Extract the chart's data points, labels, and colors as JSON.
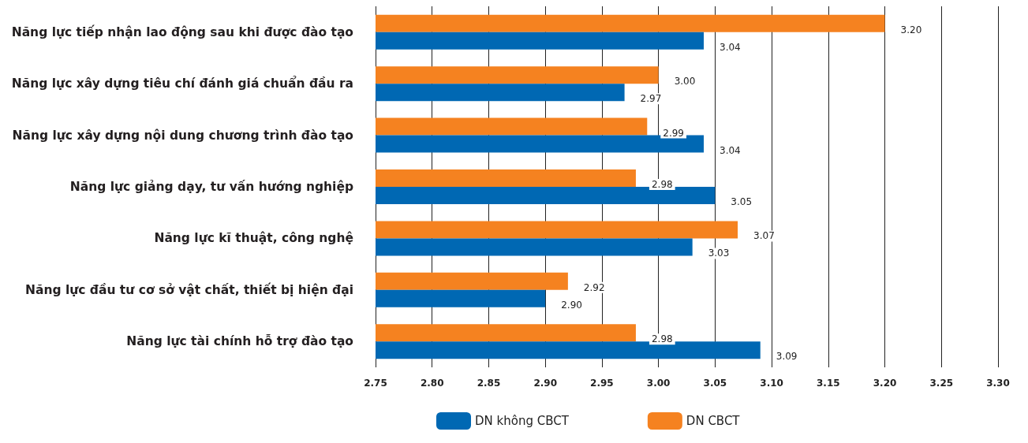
{
  "chart_data": {
    "type": "bar",
    "orientation": "horizontal",
    "categories": [
      "Năng lực tiếp nhận lao động sau khi được đào tạo",
      "Năng lực xây dựng tiêu chí đánh giá chuẩn đầu ra",
      "Năng lực xây dựng nội dung chương trình đào tạo",
      "Năng lực giảng dạy, tư vấn hướng nghiệp",
      "Năng lực kĩ thuật, công nghệ",
      "Năng lực đầu tư cơ sở vật chất, thiết bị hiện đại",
      "Năng lực tài chính hỗ trợ đào tạo"
    ],
    "series": [
      {
        "name": "DN không CBCT",
        "color": "#0068b3",
        "values": [
          3.04,
          2.97,
          3.04,
          3.05,
          3.03,
          2.9,
          3.09
        ],
        "value_labels": [
          "3.04",
          "2.97",
          "3.04",
          "3.05",
          "3.03",
          "2.90",
          "3.09"
        ]
      },
      {
        "name": "DN CBCT",
        "color": "#f58220",
        "values": [
          3.2,
          3.0,
          2.99,
          2.98,
          3.07,
          2.92,
          2.98
        ],
        "value_labels": [
          "3.20",
          "3.00",
          "2.99",
          "2.98",
          "3.07",
          "2.92",
          "2.98"
        ]
      }
    ],
    "xlim": [
      2.75,
      3.3
    ],
    "xticks": [
      {
        "value": 2.75,
        "label": "2.75"
      },
      {
        "value": 2.8,
        "label": "2.80"
      },
      {
        "value": 2.85,
        "label": "2.85"
      },
      {
        "value": 2.9,
        "label": "2.90"
      },
      {
        "value": 2.95,
        "label": "2.95"
      },
      {
        "value": 3.0,
        "label": "3.00"
      },
      {
        "value": 3.05,
        "label": "3.05"
      },
      {
        "value": 3.1,
        "label": "3.10"
      },
      {
        "value": 3.15,
        "label": "3.15"
      },
      {
        "value": 3.2,
        "label": "3.20"
      },
      {
        "value": 3.25,
        "label": "3.25"
      },
      {
        "value": 3.3,
        "label": "3.30"
      }
    ],
    "grid": "x",
    "legend": "bottom"
  }
}
